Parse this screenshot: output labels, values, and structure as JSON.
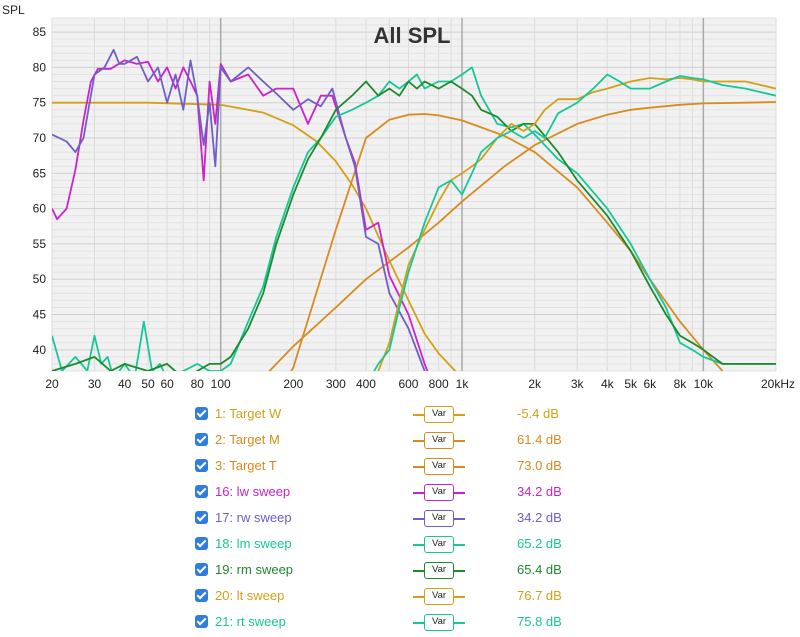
{
  "chart_data": {
    "type": "line",
    "title": "All SPL",
    "ylabel": "SPL",
    "xlabel": "",
    "x_scale": "log",
    "xlim": [
      20,
      20000
    ],
    "ylim": [
      37,
      87
    ],
    "y_ticks": [
      40,
      45,
      50,
      55,
      60,
      65,
      70,
      75,
      80,
      85
    ],
    "x_ticks": [
      {
        "v": 20,
        "label": "20"
      },
      {
        "v": 30,
        "label": "30"
      },
      {
        "v": 40,
        "label": "40"
      },
      {
        "v": 50,
        "label": "50"
      },
      {
        "v": 60,
        "label": "60"
      },
      {
        "v": 80,
        "label": "80"
      },
      {
        "v": 100,
        "label": "100"
      },
      {
        "v": 200,
        "label": "200"
      },
      {
        "v": 300,
        "label": "300"
      },
      {
        "v": 400,
        "label": "400"
      },
      {
        "v": 600,
        "label": "600"
      },
      {
        "v": 800,
        "label": "800"
      },
      {
        "v": 1000,
        "label": "1k"
      },
      {
        "v": 2000,
        "label": "2k"
      },
      {
        "v": 3000,
        "label": "3k"
      },
      {
        "v": 4000,
        "label": "4k"
      },
      {
        "v": 5000,
        "label": "5k"
      },
      {
        "v": 6000,
        "label": "6k"
      },
      {
        "v": 8000,
        "label": "8k"
      },
      {
        "v": 10000,
        "label": "10k"
      },
      {
        "v": 20000,
        "label": "20kHz"
      }
    ],
    "grid": true,
    "series": [
      {
        "name": "1: Target W",
        "color": "#d4a017",
        "value_label": "-5.4 dB",
        "btn": "Var",
        "x": [
          20,
          50,
          100,
          150,
          200,
          250,
          300,
          350,
          400,
          500,
          600,
          700,
          800,
          1000
        ],
        "y": [
          75,
          75,
          74.7,
          73.6,
          71.8,
          69.5,
          66.7,
          63.4,
          60,
          52.6,
          47,
          42.3,
          39.5,
          36
        ]
      },
      {
        "name": "2: Target M",
        "color": "#d98b1e",
        "value_label": "61.4 dB",
        "btn": "Var",
        "x": [
          100,
          150,
          200,
          300,
          400,
          500,
          600,
          700,
          800,
          1000,
          1500,
          2000,
          3000,
          4000,
          5000,
          6000,
          8000,
          10000,
          12000
        ],
        "y": [
          35,
          30,
          37.5,
          57,
          70,
          72.6,
          73.3,
          73.4,
          73.2,
          72.5,
          70.3,
          68,
          63,
          58,
          54,
          50,
          44,
          40,
          37
        ]
      },
      {
        "name": "3: Target T",
        "color": "#d98b1e",
        "value_label": "73.0 dB",
        "btn": "Var",
        "x": [
          140,
          200,
          300,
          400,
          600,
          800,
          1000,
          1500,
          2000,
          3000,
          4000,
          5000,
          6000,
          8000,
          10000,
          15000,
          20000
        ],
        "y": [
          35,
          40.5,
          46,
          50,
          54.5,
          58,
          61,
          66,
          69,
          72,
          73.3,
          74,
          74.3,
          74.7,
          74.9,
          75,
          75.1
        ]
      },
      {
        "name": "16: lw sweep",
        "color": "#cc22cc",
        "value_label": "34.2 dB",
        "btn": "Var",
        "x": [
          20,
          21,
          23,
          25,
          27,
          29,
          31,
          35,
          40,
          45,
          50,
          55,
          60,
          65,
          70,
          75,
          80,
          85,
          90,
          95,
          100,
          110,
          130,
          150,
          170,
          200,
          230,
          260,
          290,
          330,
          360,
          400,
          450,
          500,
          600,
          700,
          800
        ],
        "y": [
          60,
          58.5,
          60,
          65.5,
          72.5,
          78,
          79.8,
          79.8,
          81,
          80.5,
          80.8,
          78,
          80,
          77,
          80,
          78,
          76,
          64,
          78,
          72,
          80.5,
          78,
          79,
          76,
          77,
          77,
          72,
          76,
          76,
          70,
          66.5,
          57,
          58,
          50.5,
          45,
          38,
          33
        ]
      },
      {
        "name": "17: rw sweep",
        "color": "#6f5fc6",
        "value_label": "34.2 dB",
        "btn": "Var",
        "x": [
          20,
          23,
          25,
          27,
          30,
          33,
          36,
          38,
          40,
          45,
          50,
          55,
          60,
          65,
          70,
          75,
          80,
          85,
          90,
          95,
          100,
          110,
          130,
          150,
          170,
          200,
          230,
          260,
          290,
          330,
          360,
          400,
          450,
          500,
          600,
          700,
          800
        ],
        "y": [
          70.5,
          69.5,
          68,
          70,
          79,
          80,
          82.5,
          80.5,
          80.5,
          81.5,
          78,
          80,
          75,
          79,
          74,
          81,
          75.8,
          69,
          75,
          66,
          80,
          78,
          80,
          78,
          76.3,
          74,
          75.5,
          74.5,
          77,
          70,
          66,
          56,
          55,
          48,
          43,
          37,
          33
        ]
      },
      {
        "name": "18: lm sweep",
        "color": "#16c79a",
        "value_label": "65.2 dB",
        "btn": "Var",
        "x": [
          20,
          22,
          25,
          28,
          30,
          32,
          34,
          36,
          38,
          40,
          44,
          48,
          52,
          56,
          60,
          70,
          80,
          90,
          100,
          110,
          130,
          150,
          170,
          200,
          230,
          260,
          300,
          350,
          400,
          450,
          500,
          550,
          600,
          650,
          700,
          800,
          900,
          1000,
          1100,
          1200,
          1400,
          1600,
          1800,
          2000,
          2500,
          3000,
          4000,
          5000,
          6000,
          7000,
          8000,
          9000,
          10000,
          12000,
          15000,
          20000
        ],
        "y": [
          42,
          37,
          39,
          37,
          42,
          38,
          39,
          36,
          37,
          38,
          36,
          44,
          37,
          38,
          36,
          37,
          38,
          37,
          37,
          38,
          44,
          49,
          56,
          63,
          68,
          70,
          73,
          74,
          75,
          76,
          78,
          77,
          78,
          79,
          77,
          78,
          78,
          79,
          80,
          76,
          72,
          71.5,
          72,
          70.5,
          67,
          65,
          60,
          55,
          50,
          46,
          41,
          40,
          39,
          38,
          38,
          38
        ]
      },
      {
        "name": "19: rm sweep",
        "color": "#1e8a2e",
        "value_label": "65.4 dB",
        "btn": "Var",
        "x": [
          20,
          25,
          30,
          35,
          40,
          50,
          60,
          70,
          80,
          90,
          100,
          110,
          130,
          150,
          170,
          200,
          230,
          260,
          300,
          350,
          400,
          450,
          500,
          550,
          600,
          650,
          700,
          800,
          900,
          1000,
          1100,
          1200,
          1400,
          1600,
          1800,
          2000,
          2500,
          3000,
          4000,
          5000,
          6000,
          7000,
          8000,
          9000,
          10000,
          12000,
          15000,
          20000
        ],
        "y": [
          37,
          38,
          39,
          37,
          38,
          37,
          38,
          36,
          37,
          38,
          38,
          39,
          43,
          48,
          55,
          62,
          67,
          70,
          74,
          76,
          78,
          76,
          77,
          76,
          78,
          77,
          78,
          77,
          78,
          77,
          76,
          74,
          73,
          71,
          72,
          72,
          68,
          64,
          59,
          54,
          49,
          45,
          42,
          41,
          40,
          38,
          38,
          38
        ]
      },
      {
        "name": "20: lt sweep",
        "color": "#d4a017",
        "value_label": "76.7 dB",
        "btn": "Var",
        "x": [
          400,
          450,
          500,
          550,
          600,
          700,
          800,
          900,
          1000,
          1100,
          1200,
          1400,
          1600,
          1800,
          2000,
          2200,
          2500,
          3000,
          3500,
          4000,
          5000,
          6000,
          7000,
          8000,
          9000,
          10000,
          12000,
          15000,
          20000
        ],
        "y": [
          35,
          37,
          41,
          47,
          52,
          57,
          61,
          64,
          65,
          66,
          67,
          70,
          72,
          71,
          72,
          74,
          75.5,
          75.5,
          76.5,
          77,
          78,
          78.5,
          78.3,
          78.5,
          78.3,
          78,
          78,
          78,
          77
        ]
      },
      {
        "name": "21: rt sweep",
        "color": "#16c79a",
        "value_label": "75.8 dB",
        "btn": "Var",
        "x": [
          400,
          450,
          500,
          550,
          600,
          700,
          800,
          900,
          1000,
          1100,
          1200,
          1400,
          1600,
          1800,
          2000,
          2200,
          2500,
          3000,
          3500,
          4000,
          4500,
          5000,
          6000,
          7000,
          8000,
          9000,
          10000,
          12000,
          15000,
          20000
        ],
        "y": [
          35,
          38,
          40,
          46,
          51,
          58,
          63,
          64,
          62,
          65,
          68,
          70,
          71,
          70,
          71,
          70,
          73.5,
          75,
          77,
          79,
          78,
          77,
          77,
          78,
          78.8,
          78.5,
          78.3,
          77.5,
          77,
          76
        ]
      }
    ]
  }
}
